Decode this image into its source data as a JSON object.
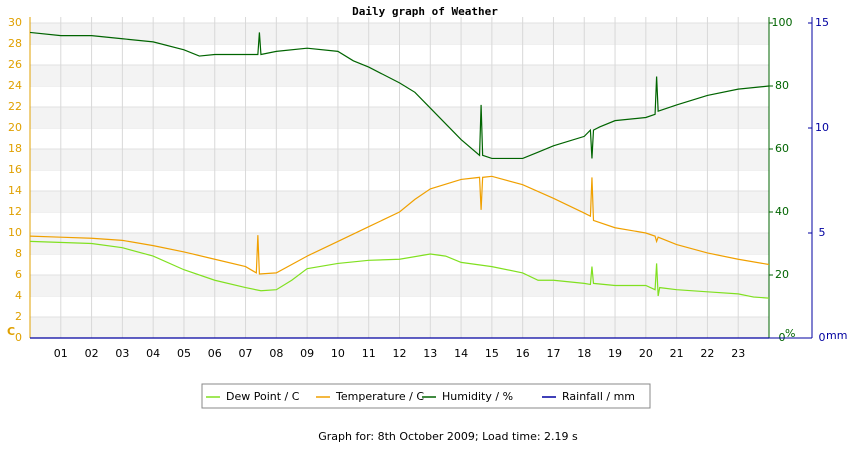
{
  "chart_data": {
    "type": "line",
    "title": "Daily graph of Weather",
    "footer": "Graph for: 8th October 2009; Load time: 2.19 s",
    "y_label": "C",
    "y2_label": "%",
    "y3_label": "mm",
    "xlim": [
      0,
      24
    ],
    "xticks": [
      {
        "value": 1,
        "label": "01"
      },
      {
        "value": 2,
        "label": "02"
      },
      {
        "value": 3,
        "label": "03"
      },
      {
        "value": 4,
        "label": "04"
      },
      {
        "value": 5,
        "label": "05"
      },
      {
        "value": 6,
        "label": "06"
      },
      {
        "value": 7,
        "label": "07"
      },
      {
        "value": 8,
        "label": "08"
      },
      {
        "value": 9,
        "label": "09"
      },
      10,
      11,
      12,
      13,
      14,
      15,
      16,
      17,
      18,
      19,
      20,
      21,
      22,
      23
    ],
    "ylim": [
      0,
      30
    ],
    "yticks": [
      0,
      2,
      4,
      6,
      8,
      10,
      12,
      14,
      16,
      18,
      20,
      22,
      24,
      26,
      28,
      30
    ],
    "y2lim": [
      0,
      100
    ],
    "y2ticks": [
      0,
      20,
      40,
      60,
      80,
      100
    ],
    "y3lim": [
      0,
      15
    ],
    "y3ticks": [
      0,
      5,
      10,
      15
    ],
    "grid": true,
    "series": [
      {
        "name": "Dew Point / C",
        "color": "#80e020",
        "axis": "y",
        "x": [
          0,
          2,
          3,
          4,
          5,
          6,
          7,
          7.5,
          8,
          8.5,
          9,
          10,
          11,
          12,
          13,
          13.5,
          14,
          15,
          16,
          16.5,
          17,
          18,
          18.2,
          18.25,
          18.3,
          19,
          20,
          20.3,
          20.35,
          20.4,
          20.45,
          21,
          22,
          23,
          23.5,
          24
        ],
        "values": [
          9.2,
          9.0,
          8.6,
          7.8,
          6.5,
          5.5,
          4.8,
          4.5,
          4.6,
          5.5,
          6.6,
          7.1,
          7.4,
          7.5,
          8.0,
          7.8,
          7.2,
          6.8,
          6.2,
          5.5,
          5.5,
          5.2,
          5.1,
          6.8,
          5.2,
          5.0,
          5.0,
          4.6,
          7.1,
          4.0,
          4.8,
          4.6,
          4.4,
          4.2,
          3.9,
          3.8
        ]
      },
      {
        "name": "Temperature / C",
        "color": "#f0a000",
        "axis": "y",
        "x": [
          0,
          1,
          2,
          3,
          4,
          5,
          6,
          7,
          7.35,
          7.4,
          7.45,
          8,
          9,
          10,
          11,
          12,
          12.5,
          13,
          14,
          14.6,
          14.65,
          14.7,
          15,
          16,
          17,
          18,
          18.2,
          18.25,
          18.3,
          19,
          20,
          20.3,
          20.35,
          20.4,
          21,
          22,
          23,
          24
        ],
        "values": [
          9.7,
          9.6,
          9.5,
          9.3,
          8.8,
          8.2,
          7.5,
          6.8,
          6.2,
          9.8,
          6.1,
          6.2,
          7.8,
          9.2,
          10.6,
          12.0,
          13.2,
          14.2,
          15.1,
          15.3,
          12.2,
          15.3,
          15.4,
          14.6,
          13.3,
          11.9,
          11.6,
          15.3,
          11.2,
          10.5,
          10.0,
          9.7,
          9.2,
          9.6,
          8.9,
          8.1,
          7.5,
          7.0
        ]
      },
      {
        "name": "Humidity / %",
        "color": "#006400",
        "axis": "y2",
        "x": [
          0,
          1,
          2,
          3,
          4,
          5,
          5.5,
          6,
          7,
          7.4,
          7.45,
          7.5,
          8,
          9,
          10,
          10.5,
          11,
          12,
          12.5,
          13,
          13.5,
          14,
          14.6,
          14.65,
          14.7,
          15,
          16,
          16.5,
          17,
          18,
          18.2,
          18.25,
          18.3,
          18.5,
          19,
          20,
          20.3,
          20.35,
          20.4,
          21,
          22,
          23,
          24
        ],
        "values": [
          97,
          96,
          96,
          95,
          94,
          91.5,
          89.5,
          90,
          90,
          90,
          97,
          90,
          91,
          92,
          91,
          88,
          86,
          81,
          78,
          73,
          68,
          63,
          58,
          74,
          58,
          57,
          57,
          59,
          61,
          64,
          66,
          57,
          66,
          67,
          69,
          70,
          71,
          83,
          72,
          74,
          77,
          79,
          80
        ]
      },
      {
        "name": "Rainfall / mm",
        "color": "#0000a0",
        "axis": "y3",
        "x": [
          0,
          24
        ],
        "values": [
          0,
          0
        ]
      }
    ]
  }
}
